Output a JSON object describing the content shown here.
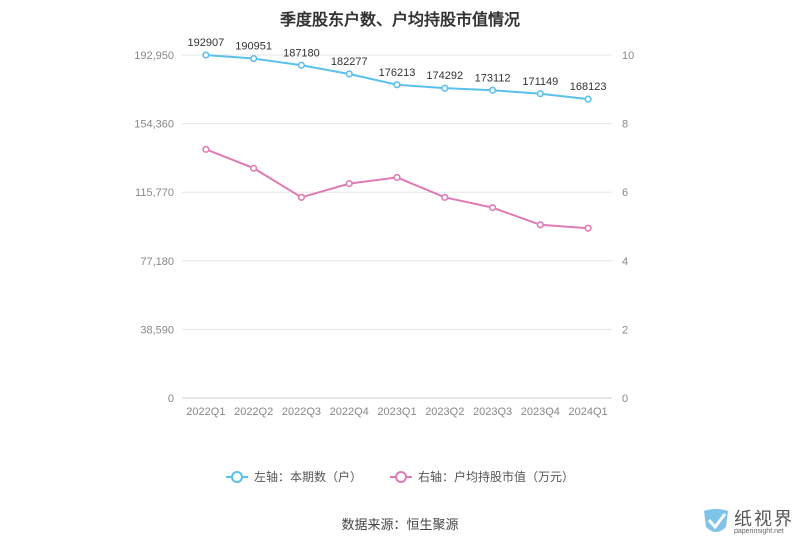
{
  "title": "季度股东户数、户均持股市值情况",
  "source": "数据来源：恒生聚源",
  "logo": {
    "text": "纸视界",
    "url": "paperinsight.net"
  },
  "colors": {
    "left_series": "#5bc0eb",
    "right_series": "#e07bb5",
    "grid": "#e6e6e6",
    "axis_text": "#888888"
  },
  "legend": [
    {
      "label": "左轴：本期数（户）",
      "color": "#5bc0eb"
    },
    {
      "label": "右轴：户均持股市值（万元）",
      "color": "#e07bb5"
    }
  ],
  "chart_data": {
    "type": "line",
    "title": "季度股东户数、户均持股市值情况",
    "categories": [
      "2022Q1",
      "2022Q2",
      "2022Q3",
      "2022Q4",
      "2023Q1",
      "2023Q2",
      "2023Q3",
      "2023Q4",
      "2024Q1"
    ],
    "left_axis": {
      "ticks": [
        "0",
        "38,590",
        "77,180",
        "115,770",
        "154,360",
        "192,950"
      ],
      "range": [
        0,
        192950
      ]
    },
    "right_axis": {
      "ticks": [
        "0",
        "2",
        "4",
        "6",
        "8",
        "10"
      ],
      "range": [
        0,
        10
      ]
    },
    "series": [
      {
        "name": "左轴：本期数（户）",
        "axis": "left",
        "values": [
          192907,
          190951,
          187180,
          182277,
          176213,
          174292,
          173112,
          171149,
          168123
        ],
        "labels": [
          "192907",
          "190951",
          "187180",
          "182277",
          "176213",
          "174292",
          "173112",
          "171149",
          "168123"
        ]
      },
      {
        "name": "右轴：户均持股市值（万元）",
        "axis": "right",
        "values": [
          7.25,
          6.7,
          5.85,
          6.25,
          6.43,
          5.85,
          5.55,
          5.05,
          4.95
        ]
      }
    ],
    "grid": true,
    "legend_position": "bottom"
  }
}
